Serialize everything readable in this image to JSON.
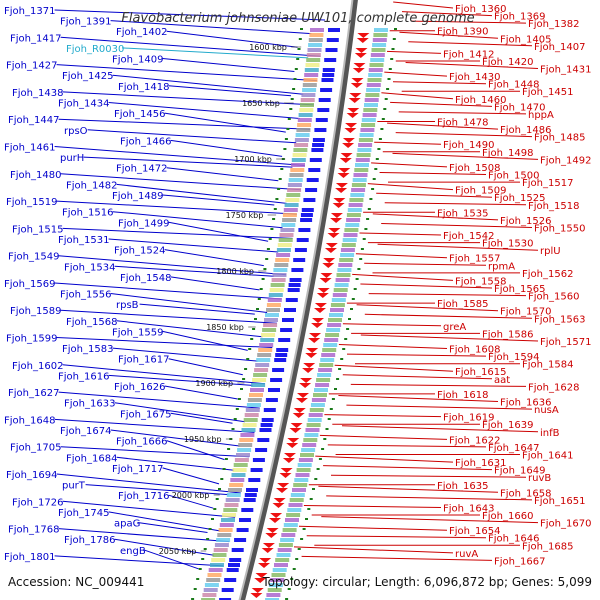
{
  "title": "Flavobacterium johnsoniae UW101, complete genome",
  "footer": {
    "accession": "Accession: NC_009441",
    "topology": "Topology: circular; Length: 6,096,872 bp; Genes: 5,099"
  },
  "colors": {
    "left_strand": "#0000cc",
    "right_strand": "#cc0000",
    "left_features": "#1a1aee",
    "right_features": "#ee1111",
    "rna": "#22aacc",
    "backbone": "#777777",
    "gc_ticks": "#1a7a1a",
    "text": "#222222"
  },
  "scale_labels": [
    "1600 kbp",
    "1650 kbp",
    "1700 kbp",
    "1750 kbp",
    "1800 kbp",
    "1850 kbp",
    "1900 kbp",
    "1950 kbp",
    "2000 kbp",
    "2050 kbp"
  ],
  "left_genes": [
    "Fjoh_1371",
    "Fjoh_1391",
    "Fjoh_1402",
    "Fjoh_1417",
    "Fjoh_R0030",
    "Fjoh_1409",
    "Fjoh_1427",
    "Fjoh_1425",
    "Fjoh_1418",
    "Fjoh_1438",
    "Fjoh_1434",
    "Fjoh_1456",
    "Fjoh_1447",
    "rpsO",
    "Fjoh_1466",
    "Fjoh_1461",
    "purH",
    "Fjoh_1472",
    "Fjoh_1480",
    "Fjoh_1482",
    "Fjoh_1489",
    "Fjoh_1519",
    "Fjoh_1516",
    "Fjoh_1499",
    "Fjoh_1515",
    "Fjoh_1531",
    "Fjoh_1524",
    "Fjoh_1549",
    "Fjoh_1534",
    "Fjoh_1548",
    "Fjoh_1569",
    "Fjoh_1556",
    "rpsB",
    "Fjoh_1589",
    "Fjoh_1568",
    "Fjoh_1559",
    "Fjoh_1599",
    "Fjoh_1583",
    "Fjoh_1617",
    "Fjoh_1602",
    "Fjoh_1616",
    "Fjoh_1626",
    "Fjoh_1627",
    "Fjoh_1633",
    "Fjoh_1675",
    "Fjoh_1648",
    "Fjoh_1674",
    "Fjoh_1666",
    "Fjoh_1705",
    "Fjoh_1684",
    "Fjoh_1717",
    "Fjoh_1694",
    "purT",
    "Fjoh_1716",
    "Fjoh_1726",
    "Fjoh_1745",
    "apaG",
    "Fjoh_1768",
    "Fjoh_1786",
    "engB",
    "Fjoh_1801"
  ],
  "right_genes": [
    "Fjoh_1360",
    "Fjoh_1369",
    "Fjoh_1382",
    "Fjoh_1390",
    "Fjoh_1405",
    "Fjoh_1407",
    "Fjoh_1412",
    "Fjoh_1420",
    "Fjoh_1431",
    "Fjoh_1430",
    "Fjoh_1448",
    "Fjoh_1451",
    "Fjoh_1460",
    "Fjoh_1470",
    "hppA",
    "Fjoh_1478",
    "Fjoh_1486",
    "Fjoh_1485",
    "Fjoh_1490",
    "Fjoh_1498",
    "Fjoh_1492",
    "Fjoh_1508",
    "Fjoh_1500",
    "Fjoh_1517",
    "Fjoh_1509",
    "Fjoh_1525",
    "Fjoh_1518",
    "Fjoh_1535",
    "Fjoh_1526",
    "Fjoh_1550",
    "Fjoh_1542",
    "Fjoh_1530",
    "rplU",
    "Fjoh_1557",
    "rpmA",
    "Fjoh_1562",
    "Fjoh_1558",
    "Fjoh_1565",
    "Fjoh_1560",
    "Fjoh_1585",
    "Fjoh_1570",
    "Fjoh_1563",
    "greA",
    "Fjoh_1586",
    "Fjoh_1571",
    "Fjoh_1608",
    "Fjoh_1594",
    "Fjoh_1584",
    "Fjoh_1615",
    "aat",
    "Fjoh_1628",
    "Fjoh_1618",
    "Fjoh_1636",
    "nusA",
    "Fjoh_1619",
    "Fjoh_1639",
    "infB",
    "Fjoh_1622",
    "Fjoh_1647",
    "Fjoh_1641",
    "Fjoh_1631",
    "Fjoh_1649",
    "ruvB",
    "Fjoh_1635",
    "Fjoh_1658",
    "Fjoh_1651",
    "Fjoh_1643",
    "Fjoh_1660",
    "Fjoh_1670",
    "Fjoh_1654",
    "Fjoh_1646",
    "Fjoh_1685",
    "ruvA",
    "Fjoh_1667"
  ]
}
